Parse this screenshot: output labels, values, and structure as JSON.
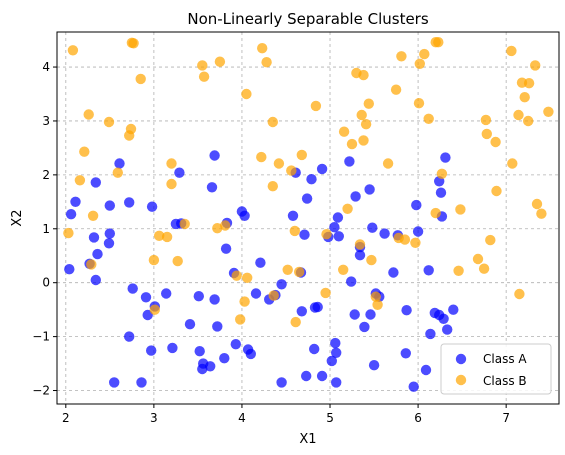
{
  "chart_data": {
    "type": "scatter",
    "title": "Non-Linearly Separable Clusters",
    "xlabel": "X1",
    "ylabel": "X2",
    "xlim": [
      1.9,
      7.6
    ],
    "ylim": [
      -2.25,
      4.65
    ],
    "xticks": [
      2,
      3,
      4,
      5,
      6,
      7
    ],
    "yticks": [
      -2,
      -1,
      0,
      1,
      2,
      3,
      4
    ],
    "grid": true,
    "legend": "bottom-right",
    "series": [
      {
        "name": "Class A",
        "color": "#0000ff",
        "points": [
          [
            2.04,
            0.25
          ],
          [
            2.06,
            1.27
          ],
          [
            2.11,
            1.5
          ],
          [
            2.27,
            0.35
          ],
          [
            2.32,
            0.84
          ],
          [
            2.34,
            0.05
          ],
          [
            2.34,
            1.86
          ],
          [
            2.36,
            0.53
          ],
          [
            2.49,
            0.73
          ],
          [
            2.5,
            0.91
          ],
          [
            2.5,
            1.43
          ],
          [
            2.55,
            -1.85
          ],
          [
            2.61,
            2.21
          ],
          [
            2.72,
            -1.0
          ],
          [
            2.72,
            1.49
          ],
          [
            2.76,
            -0.11
          ],
          [
            2.86,
            -1.85
          ],
          [
            2.91,
            -0.27
          ],
          [
            2.93,
            -0.6
          ],
          [
            2.97,
            -1.26
          ],
          [
            2.98,
            1.41
          ],
          [
            3.01,
            -0.44
          ],
          [
            3.14,
            -0.2
          ],
          [
            3.21,
            -1.21
          ],
          [
            3.25,
            1.09
          ],
          [
            3.31,
            1.1
          ],
          [
            3.29,
            2.04
          ],
          [
            3.41,
            -0.77
          ],
          [
            3.51,
            -0.25
          ],
          [
            3.52,
            -1.27
          ],
          [
            3.55,
            -1.6
          ],
          [
            3.56,
            -1.5
          ],
          [
            3.64,
            -1.55
          ],
          [
            3.66,
            1.77
          ],
          [
            3.69,
            -0.31
          ],
          [
            3.69,
            2.36
          ],
          [
            3.72,
            -0.81
          ],
          [
            3.8,
            -1.4
          ],
          [
            3.82,
            0.63
          ],
          [
            3.83,
            1.11
          ],
          [
            3.91,
            0.18
          ],
          [
            3.93,
            -1.14
          ],
          [
            4.0,
            1.32
          ],
          [
            4.03,
            1.24
          ],
          [
            4.07,
            -1.24
          ],
          [
            4.1,
            -1.32
          ],
          [
            4.16,
            -0.2
          ],
          [
            4.21,
            0.37
          ],
          [
            4.31,
            -0.31
          ],
          [
            4.38,
            -0.23
          ],
          [
            4.45,
            -1.85
          ],
          [
            4.45,
            -0.03
          ],
          [
            4.58,
            1.24
          ],
          [
            4.61,
            2.04
          ],
          [
            4.67,
            0.19
          ],
          [
            4.68,
            -0.53
          ],
          [
            4.71,
            0.89
          ],
          [
            4.73,
            -1.73
          ],
          [
            4.74,
            1.56
          ],
          [
            4.79,
            1.92
          ],
          [
            4.82,
            -1.23
          ],
          [
            4.83,
            -0.46
          ],
          [
            4.86,
            -0.45
          ],
          [
            4.91,
            2.11
          ],
          [
            4.91,
            -1.73
          ],
          [
            4.98,
            0.85
          ],
          [
            5.02,
            -1.45
          ],
          [
            5.05,
            1.03
          ],
          [
            5.06,
            -1.12
          ],
          [
            5.07,
            -1.3
          ],
          [
            5.07,
            -1.85
          ],
          [
            5.09,
            1.21
          ],
          [
            5.1,
            0.86
          ],
          [
            5.22,
            2.25
          ],
          [
            5.24,
            0.02
          ],
          [
            5.28,
            -0.59
          ],
          [
            5.29,
            1.6
          ],
          [
            5.34,
            0.51
          ],
          [
            5.34,
            0.66
          ],
          [
            5.39,
            -0.82
          ],
          [
            5.45,
            1.73
          ],
          [
            5.46,
            -0.59
          ],
          [
            5.48,
            1.02
          ],
          [
            5.5,
            -1.53
          ],
          [
            5.52,
            -0.2
          ],
          [
            5.56,
            -0.26
          ],
          [
            5.62,
            0.91
          ],
          [
            5.72,
            0.19
          ],
          [
            5.77,
            0.88
          ],
          [
            5.86,
            -1.31
          ],
          [
            5.87,
            -0.51
          ],
          [
            5.95,
            -1.93
          ],
          [
            5.98,
            1.44
          ],
          [
            6.0,
            0.95
          ],
          [
            6.09,
            -1.62
          ],
          [
            6.12,
            0.23
          ],
          [
            6.14,
            -0.95
          ],
          [
            6.19,
            -0.56
          ],
          [
            6.24,
            1.88
          ],
          [
            6.24,
            -0.6
          ],
          [
            6.26,
            1.67
          ],
          [
            6.27,
            1.23
          ],
          [
            6.29,
            -0.67
          ],
          [
            6.31,
            2.32
          ],
          [
            6.33,
            -0.87
          ],
          [
            6.4,
            -0.5
          ]
        ]
      },
      {
        "name": "Class B",
        "color": "#ffa500",
        "points": [
          [
            2.03,
            0.92
          ],
          [
            2.08,
            4.31
          ],
          [
            2.16,
            1.9
          ],
          [
            2.21,
            2.43
          ],
          [
            2.26,
            3.12
          ],
          [
            2.29,
            0.34
          ],
          [
            2.31,
            1.24
          ],
          [
            2.49,
            2.98
          ],
          [
            2.59,
            2.04
          ],
          [
            2.72,
            2.73
          ],
          [
            2.74,
            2.85
          ],
          [
            2.75,
            4.45
          ],
          [
            2.77,
            4.44
          ],
          [
            2.85,
            3.78
          ],
          [
            3.0,
            0.42
          ],
          [
            3.01,
            -0.5
          ],
          [
            3.06,
            0.87
          ],
          [
            3.15,
            0.85
          ],
          [
            3.2,
            1.83
          ],
          [
            3.2,
            2.21
          ],
          [
            3.27,
            0.4
          ],
          [
            3.35,
            1.09
          ],
          [
            3.55,
            4.03
          ],
          [
            3.57,
            3.82
          ],
          [
            3.72,
            1.01
          ],
          [
            3.75,
            4.1
          ],
          [
            3.81,
            1.06
          ],
          [
            3.94,
            0.13
          ],
          [
            3.98,
            -0.68
          ],
          [
            4.03,
            -0.35
          ],
          [
            4.06,
            0.09
          ],
          [
            4.05,
            3.5
          ],
          [
            4.22,
            2.33
          ],
          [
            4.23,
            4.35
          ],
          [
            4.28,
            4.09
          ],
          [
            4.35,
            1.79
          ],
          [
            4.35,
            2.98
          ],
          [
            4.36,
            -0.24
          ],
          [
            4.42,
            2.21
          ],
          [
            4.52,
            0.24
          ],
          [
            4.56,
            2.08
          ],
          [
            4.6,
            0.96
          ],
          [
            4.61,
            -0.73
          ],
          [
            4.65,
            0.2
          ],
          [
            4.68,
            2.37
          ],
          [
            4.84,
            3.28
          ],
          [
            4.95,
            -0.19
          ],
          [
            4.96,
            0.9
          ],
          [
            5.15,
            0.24
          ],
          [
            5.16,
            2.8
          ],
          [
            5.2,
            1.37
          ],
          [
            5.25,
            2.57
          ],
          [
            5.3,
            3.89
          ],
          [
            5.34,
            0.71
          ],
          [
            5.36,
            3.11
          ],
          [
            5.38,
            3.85
          ],
          [
            5.38,
            2.64
          ],
          [
            5.41,
            2.94
          ],
          [
            5.44,
            3.32
          ],
          [
            5.47,
            0.42
          ],
          [
            5.52,
            -0.26
          ],
          [
            5.54,
            -0.41
          ],
          [
            5.66,
            2.21
          ],
          [
            5.75,
            3.58
          ],
          [
            5.78,
            0.83
          ],
          [
            5.81,
            4.2
          ],
          [
            5.85,
            0.8
          ],
          [
            5.97,
            0.74
          ],
          [
            6.01,
            3.33
          ],
          [
            6.02,
            4.06
          ],
          [
            6.07,
            4.24
          ],
          [
            6.12,
            3.04
          ],
          [
            6.2,
            1.29
          ],
          [
            6.2,
            4.46
          ],
          [
            6.23,
            4.46
          ],
          [
            6.27,
            2.02
          ],
          [
            6.46,
            0.22
          ],
          [
            6.48,
            1.36
          ],
          [
            6.68,
            0.44
          ],
          [
            6.75,
            0.26
          ],
          [
            6.77,
            3.02
          ],
          [
            6.78,
            2.76
          ],
          [
            6.82,
            0.79
          ],
          [
            6.88,
            2.61
          ],
          [
            6.89,
            1.7
          ],
          [
            7.06,
            4.3
          ],
          [
            7.07,
            2.21
          ],
          [
            7.14,
            3.11
          ],
          [
            7.15,
            -0.21
          ],
          [
            7.18,
            3.71
          ],
          [
            7.21,
            3.44
          ],
          [
            7.25,
            3.0
          ],
          [
            7.26,
            3.7
          ],
          [
            7.33,
            4.03
          ],
          [
            7.35,
            1.46
          ],
          [
            7.4,
            1.28
          ],
          [
            7.48,
            3.17
          ]
        ]
      }
    ]
  }
}
